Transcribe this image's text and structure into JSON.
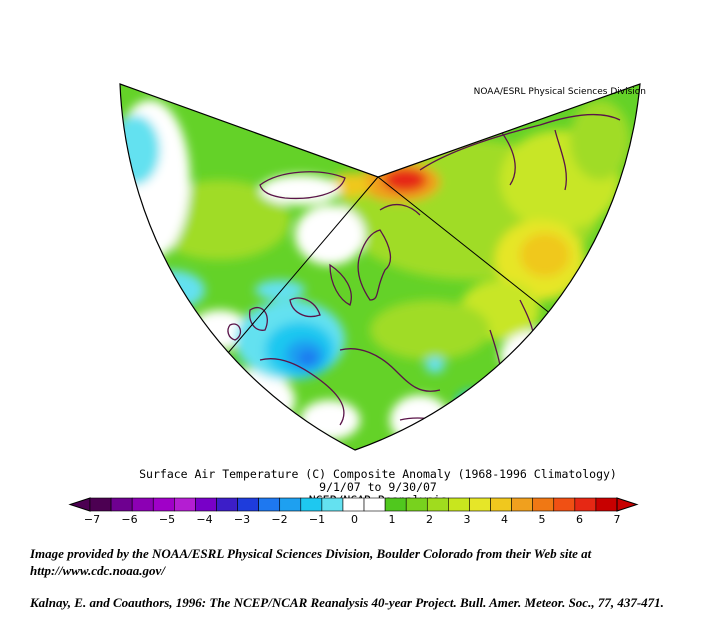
{
  "header": {
    "source": "NOAA/ESRL Physical Sciences Division"
  },
  "title": {
    "line1": "Surface Air Temperature (C) Composite Anomaly (1968-1996 Climatology)",
    "line2": "9/1/07  to 9/30/07",
    "line3": "NCEP/NCAR Reanalysis"
  },
  "colorbar": {
    "ticks": [
      "-7",
      "-6",
      "-5",
      "-4",
      "-3",
      "-2",
      "-1",
      "0",
      "1",
      "2",
      "3",
      "4",
      "5",
      "6",
      "7"
    ],
    "colors": [
      "#4c0052",
      "#6e0090",
      "#8c00b4",
      "#a000c8",
      "#b41ed2",
      "#7800c8",
      "#3c1ec8",
      "#1e3cdc",
      "#1e78f0",
      "#1ea0f0",
      "#1ec8f0",
      "#64e1f0",
      "#ffffff",
      "#ffffff",
      "#50c81e",
      "#78d21e",
      "#a0dc1e",
      "#c8e61e",
      "#e6e628",
      "#f0c81e",
      "#f0a01e",
      "#f07814",
      "#f05014",
      "#e62814",
      "#c80000"
    ]
  },
  "credits": {
    "line1": "Image provided by the NOAA/ESRL Physical Sciences Division, Boulder Colorado from their Web site at",
    "line2": "http://www.cdc.noaa.gov/",
    "line3": "Kalnay, E. and Coauthors, 1996: The NCEP/NCAR Reanalysis 40-year Project. Bull. Amer. Meteor. Soc., 77, 437-471."
  }
}
